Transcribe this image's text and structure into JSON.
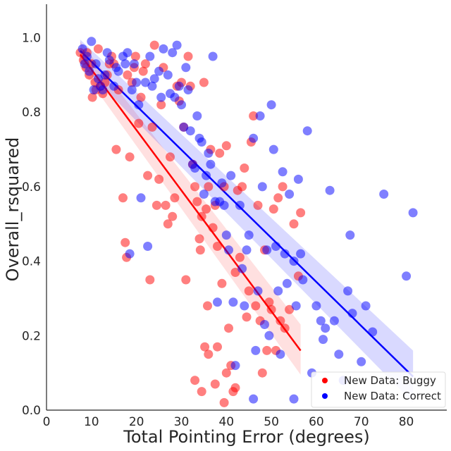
{
  "chart_data": {
    "type": "scatter",
    "xlabel": "Total Pointing Error (degrees)",
    "ylabel": "Overall_rsquared",
    "xlim": [
      0,
      89
    ],
    "ylim": [
      0,
      1.09
    ],
    "xticks": [
      "0",
      "10",
      "20",
      "30",
      "40",
      "50",
      "60",
      "70",
      "80"
    ],
    "yticks": [
      "0.0",
      "0.2",
      "0.4",
      "0.6",
      "0.8",
      "1.0"
    ],
    "grid": false,
    "legend_position": "lower-right",
    "series": [
      {
        "name": "New Data: Buggy",
        "color": "#ff0000",
        "fit": {
          "x": [
            7.5,
            56.5
          ],
          "y": [
            0.955,
            0.16
          ],
          "ci_low": [
            0.92,
            0.095
          ],
          "ci_high": [
            0.99,
            0.23
          ]
        },
        "points": [
          [
            7.5,
            0.96
          ],
          [
            8.2,
            0.94
          ],
          [
            8.8,
            0.92
          ],
          [
            9.0,
            0.96
          ],
          [
            9.5,
            0.9
          ],
          [
            10.0,
            0.93
          ],
          [
            10.2,
            0.84
          ],
          [
            10.8,
            0.88
          ],
          [
            11.0,
            0.86
          ],
          [
            11.5,
            0.97
          ],
          [
            12.0,
            0.87
          ],
          [
            12.5,
            0.85
          ],
          [
            13.0,
            0.88
          ],
          [
            13.5,
            0.9
          ],
          [
            14.0,
            0.93
          ],
          [
            14.5,
            0.95
          ],
          [
            15.0,
            0.93
          ],
          [
            15.5,
            0.7
          ],
          [
            16.0,
            0.86
          ],
          [
            17.0,
            0.57
          ],
          [
            17.5,
            0.45
          ],
          [
            17.8,
            0.41
          ],
          [
            18.0,
            0.9
          ],
          [
            18.5,
            0.68
          ],
          [
            19.0,
            0.88
          ],
          [
            19.5,
            0.92
          ],
          [
            19.8,
            0.95
          ],
          [
            20.5,
            0.77
          ],
          [
            21.0,
            0.84
          ],
          [
            21.5,
            0.91
          ],
          [
            22.0,
            0.93
          ],
          [
            22.5,
            0.63
          ],
          [
            23.0,
            0.35
          ],
          [
            23.5,
            0.76
          ],
          [
            24.0,
            0.98
          ],
          [
            24.5,
            0.55
          ],
          [
            25.0,
            0.62
          ],
          [
            25.5,
            0.82
          ],
          [
            26.0,
            0.92
          ],
          [
            26.5,
            0.55
          ],
          [
            27.0,
            0.5
          ],
          [
            27.5,
            0.68
          ],
          [
            28.0,
            0.52
          ],
          [
            28.5,
            0.57
          ],
          [
            29.0,
            0.87
          ],
          [
            29.5,
            0.83
          ],
          [
            30.0,
            0.88
          ],
          [
            30.5,
            0.76
          ],
          [
            31.0,
            0.35
          ],
          [
            31.5,
            0.95
          ],
          [
            32.0,
            0.87
          ],
          [
            32.5,
            0.66
          ],
          [
            33.0,
            0.6
          ],
          [
            33.5,
            0.56
          ],
          [
            34.0,
            0.46
          ],
          [
            34.2,
            0.43
          ],
          [
            34.5,
            0.52
          ],
          [
            35.0,
            0.88
          ],
          [
            35.2,
            0.17
          ],
          [
            35.5,
            0.54
          ],
          [
            35.8,
            0.28
          ],
          [
            36.0,
            0.6
          ],
          [
            36.5,
            0.7
          ],
          [
            37.0,
            0.49
          ],
          [
            37.5,
            0.55
          ],
          [
            38.0,
            0.44
          ],
          [
            38.5,
            0.69
          ],
          [
            39.0,
            0.34
          ],
          [
            39.5,
            0.6
          ],
          [
            40.0,
            0.71
          ],
          [
            40.5,
            0.22
          ],
          [
            41.0,
            0.12
          ],
          [
            41.5,
            0.05
          ],
          [
            42.0,
            0.37
          ],
          [
            42.5,
            0.59
          ],
          [
            43.0,
            0.41
          ],
          [
            43.5,
            0.6
          ],
          [
            44.0,
            0.65
          ],
          [
            44.5,
            0.25
          ],
          [
            45.0,
            0.32
          ],
          [
            45.5,
            0.72
          ],
          [
            46.0,
            0.79
          ],
          [
            46.5,
            0.28
          ],
          [
            47.0,
            0.55
          ],
          [
            47.5,
            0.24
          ],
          [
            48.0,
            0.1
          ],
          [
            48.5,
            0.43
          ],
          [
            49.0,
            0.16
          ],
          [
            49.5,
            0.29
          ],
          [
            50.0,
            0.27
          ],
          [
            50.5,
            0.54
          ],
          [
            51.0,
            0.16
          ],
          [
            51.5,
            0.57
          ],
          [
            52.0,
            0.24
          ],
          [
            52.5,
            0.6
          ],
          [
            53.0,
            0.22
          ],
          [
            54.0,
            0.27
          ],
          [
            55.0,
            0.5
          ],
          [
            56.0,
            0.36
          ],
          [
            56.5,
            0.53
          ],
          [
            33.0,
            0.08
          ],
          [
            34.5,
            0.05
          ],
          [
            36.0,
            0.15
          ],
          [
            37.5,
            0.07
          ],
          [
            39.5,
            0.02
          ],
          [
            38.0,
            0.17
          ],
          [
            40.0,
            0.1
          ],
          [
            42.0,
            0.06
          ]
        ]
      },
      {
        "name": "New Data: Correct",
        "color": "#0000ff",
        "fit": {
          "x": [
            7.5,
            81.5
          ],
          "y": [
            0.965,
            0.09
          ],
          "ci_low": [
            0.93,
            0.02
          ],
          "ci_high": [
            0.995,
            0.16
          ]
        },
        "points": [
          [
            8.0,
            0.97
          ],
          [
            8.5,
            0.93
          ],
          [
            9.0,
            0.95
          ],
          [
            9.5,
            0.91
          ],
          [
            10.0,
            0.99
          ],
          [
            10.5,
            0.86
          ],
          [
            11.0,
            0.93
          ],
          [
            11.5,
            0.89
          ],
          [
            12.0,
            0.87
          ],
          [
            12.5,
            0.86
          ],
          [
            13.0,
            0.9
          ],
          [
            13.5,
            0.96
          ],
          [
            14.0,
            0.94
          ],
          [
            15.0,
            0.87
          ],
          [
            15.5,
            0.92
          ],
          [
            16.0,
            0.91
          ],
          [
            17.0,
            0.95
          ],
          [
            17.5,
            0.93
          ],
          [
            18.0,
            0.96
          ],
          [
            18.5,
            0.42
          ],
          [
            19.0,
            0.86
          ],
          [
            19.5,
            0.93
          ],
          [
            20.0,
            0.88
          ],
          [
            20.5,
            0.82
          ],
          [
            21.0,
            0.57
          ],
          [
            22.0,
            0.88
          ],
          [
            22.5,
            0.44
          ],
          [
            23.0,
            0.95
          ],
          [
            23.5,
            0.87
          ],
          [
            24.0,
            0.89
          ],
          [
            25.0,
            0.91
          ],
          [
            25.5,
            0.84
          ],
          [
            26.0,
            0.97
          ],
          [
            27.0,
            0.9
          ],
          [
            27.5,
            0.85
          ],
          [
            28.0,
            0.96
          ],
          [
            28.5,
            0.84
          ],
          [
            29.0,
            0.98
          ],
          [
            29.5,
            0.87
          ],
          [
            30.0,
            0.82
          ],
          [
            30.5,
            0.76
          ],
          [
            31.0,
            0.92
          ],
          [
            31.5,
            0.86
          ],
          [
            32.0,
            0.75
          ],
          [
            32.5,
            0.66
          ],
          [
            33.0,
            0.65
          ],
          [
            33.5,
            0.79
          ],
          [
            34.0,
            0.73
          ],
          [
            34.5,
            0.72
          ],
          [
            35.0,
            0.58
          ],
          [
            35.5,
            0.63
          ],
          [
            36.0,
            0.69
          ],
          [
            36.5,
            0.66
          ],
          [
            37.0,
            0.95
          ],
          [
            37.5,
            0.56
          ],
          [
            38.0,
            0.29
          ],
          [
            38.5,
            0.56
          ],
          [
            39.0,
            0.61
          ],
          [
            39.5,
            0.55
          ],
          [
            40.0,
            0.47
          ],
          [
            40.5,
            0.43
          ],
          [
            41.0,
            0.63
          ],
          [
            41.5,
            0.29
          ],
          [
            42.0,
            0.12
          ],
          [
            43.0,
            0.55
          ],
          [
            43.5,
            0.38
          ],
          [
            44.0,
            0.28
          ],
          [
            44.5,
            0.43
          ],
          [
            45.0,
            0.47
          ],
          [
            46.0,
            0.73
          ],
          [
            46.5,
            0.16
          ],
          [
            47.0,
            0.32
          ],
          [
            47.5,
            0.79
          ],
          [
            48.0,
            0.6
          ],
          [
            48.5,
            0.23
          ],
          [
            49.0,
            0.43
          ],
          [
            49.5,
            0.2
          ],
          [
            50.0,
            0.82
          ],
          [
            50.5,
            0.7
          ],
          [
            51.0,
            0.44
          ],
          [
            51.5,
            0.32
          ],
          [
            52.0,
            0.15
          ],
          [
            52.5,
            0.64
          ],
          [
            53.0,
            0.42
          ],
          [
            53.5,
            0.34
          ],
          [
            54.0,
            0.58
          ],
          [
            55.0,
            0.4
          ],
          [
            55.5,
            0.28
          ],
          [
            56.0,
            0.62
          ],
          [
            56.5,
            0.42
          ],
          [
            57.0,
            0.35
          ],
          [
            58.0,
            0.75
          ],
          [
            59.0,
            0.1
          ],
          [
            60.0,
            0.28
          ],
          [
            61.0,
            0.24
          ],
          [
            61.5,
            0.19
          ],
          [
            62.0,
            0.22
          ],
          [
            63.0,
            0.59
          ],
          [
            64.0,
            0.24
          ],
          [
            65.0,
            0.15
          ],
          [
            66.0,
            0.08
          ],
          [
            67.0,
            0.32
          ],
          [
            67.5,
            0.47
          ],
          [
            68.0,
            0.26
          ],
          [
            70.0,
            0.13
          ],
          [
            71.0,
            0.28
          ],
          [
            72.5,
            0.21
          ],
          [
            75.0,
            0.58
          ],
          [
            80.0,
            0.36
          ],
          [
            81.5,
            0.53
          ],
          [
            55.0,
            0.03
          ],
          [
            46.0,
            0.03
          ]
        ]
      }
    ]
  }
}
